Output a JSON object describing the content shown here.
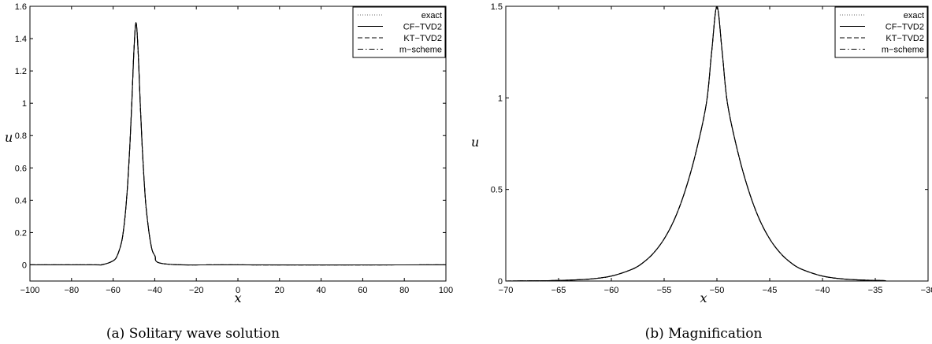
{
  "chart_data": [
    {
      "type": "line",
      "caption": "(a)  Solitary wave solution",
      "xlabel": "x",
      "ylabel": "u",
      "xlim": [
        -100,
        100
      ],
      "ylim": [
        -0.1,
        1.6
      ],
      "xticks": [
        -100,
        -80,
        -60,
        -40,
        -20,
        0,
        20,
        40,
        60,
        80,
        100
      ],
      "yticks": [
        0,
        0.2,
        0.4,
        0.6,
        0.8,
        1,
        1.2,
        1.4,
        1.6
      ],
      "xtick_labels": [
        "−100",
        "−80",
        "−60",
        "−40",
        "−20",
        "0",
        "20",
        "40",
        "60",
        "80",
        "100"
      ],
      "ytick_labels": [
        "0",
        "0.2",
        "0.4",
        "0.6",
        "0.8",
        "1",
        "1.2",
        "1.4",
        "1.6"
      ],
      "grid": false,
      "legend_position": "top-right",
      "series": [
        {
          "name": "exact",
          "style": "dotted",
          "x": [
            -100,
            -70,
            -65,
            -60,
            -58,
            -56,
            -55,
            -54,
            -53,
            -52,
            -51,
            -50,
            -49,
            -48,
            -47,
            -46,
            -45,
            -44,
            -42,
            -40,
            -35,
            0,
            100
          ],
          "y": [
            0,
            0.0002,
            0.002,
            0.025,
            0.058,
            0.138,
            0.217,
            0.336,
            0.502,
            0.727,
            1.009,
            1.327,
            1.5,
            1.327,
            1.009,
            0.727,
            0.502,
            0.336,
            0.138,
            0.058,
            0.006,
            0,
            0
          ]
        },
        {
          "name": "CF−TVD2",
          "style": "solid",
          "x": [
            -100,
            -70,
            -65,
            -60,
            -58,
            -56,
            -55,
            -54,
            -53,
            -52,
            -51,
            -50,
            -49,
            -48,
            -47,
            -46,
            -45,
            -44,
            -42,
            -40,
            -35,
            0,
            100
          ],
          "y": [
            0,
            0.0002,
            0.002,
            0.025,
            0.058,
            0.138,
            0.217,
            0.336,
            0.502,
            0.727,
            1.009,
            1.327,
            1.5,
            1.327,
            1.009,
            0.727,
            0.502,
            0.336,
            0.138,
            0.058,
            0.006,
            0,
            0
          ]
        },
        {
          "name": "KT−TVD2",
          "style": "dashed",
          "x": [
            -100,
            -70,
            -65,
            -60,
            -58,
            -56,
            -55,
            -54,
            -53,
            -52,
            -51,
            -50,
            -49,
            -48,
            -47,
            -46,
            -45,
            -44,
            -42,
            -40,
            -35,
            0,
            100
          ],
          "y": [
            0,
            0.0002,
            0.002,
            0.025,
            0.058,
            0.138,
            0.217,
            0.336,
            0.502,
            0.727,
            1.009,
            1.327,
            1.5,
            1.327,
            1.009,
            0.727,
            0.502,
            0.336,
            0.138,
            0.058,
            0.006,
            0,
            0
          ]
        },
        {
          "name": "m−scheme",
          "style": "dashdot",
          "x": [
            -100,
            -70,
            -65,
            -60,
            -58,
            -56,
            -55,
            -54,
            -53,
            -52,
            -51,
            -50,
            -49,
            -48,
            -47,
            -46,
            -45,
            -44,
            -42,
            -40,
            -35,
            0,
            100
          ],
          "y": [
            0,
            0.0002,
            0.002,
            0.025,
            0.058,
            0.138,
            0.217,
            0.336,
            0.502,
            0.727,
            1.009,
            1.327,
            1.5,
            1.327,
            1.009,
            0.727,
            0.502,
            0.336,
            0.138,
            0.058,
            0.006,
            0,
            0
          ]
        }
      ]
    },
    {
      "type": "line",
      "caption": "(b)  Magnification",
      "xlabel": "x",
      "ylabel": "u",
      "xlim": [
        -70,
        -30
      ],
      "ylim": [
        0,
        1.5
      ],
      "xticks": [
        -70,
        -65,
        -60,
        -55,
        -50,
        -45,
        -40,
        -35,
        -30
      ],
      "yticks": [
        0,
        0.5,
        1,
        1.5
      ],
      "xtick_labels": [
        "−70",
        "−65",
        "−60",
        "−55",
        "−50",
        "−45",
        "−40",
        "−35",
        "−30"
      ],
      "ytick_labels": [
        "0",
        "0.5",
        "1",
        "1.5"
      ],
      "grid": false,
      "legend_position": "top-right",
      "series": [
        {
          "name": "exact",
          "style": "dotted",
          "x": [
            -70,
            -68,
            -66,
            -64,
            -62,
            -60,
            -58,
            -57,
            -56,
            -55,
            -54,
            -53,
            -52,
            -51,
            -50.5,
            -50,
            -49.5,
            -49,
            -48,
            -47,
            -46,
            -45,
            -44,
            -43,
            -42,
            -40,
            -38,
            -36,
            -34
          ],
          "y": [
            0,
            0.001,
            0.002,
            0.005,
            0.011,
            0.027,
            0.065,
            0.1,
            0.153,
            0.23,
            0.34,
            0.495,
            0.7,
            0.97,
            1.25,
            1.5,
            1.25,
            0.97,
            0.7,
            0.495,
            0.34,
            0.23,
            0.153,
            0.1,
            0.065,
            0.027,
            0.011,
            0.005,
            0.002
          ]
        },
        {
          "name": "CF−TVD2",
          "style": "solid",
          "x": [
            -70,
            -68,
            -66,
            -64,
            -62,
            -60,
            -58,
            -57,
            -56,
            -55,
            -54,
            -53,
            -52,
            -51,
            -50.5,
            -50,
            -49.5,
            -49,
            -48,
            -47,
            -46,
            -45,
            -44,
            -43,
            -42,
            -40,
            -38,
            -36,
            -34
          ],
          "y": [
            0,
            0.001,
            0.002,
            0.005,
            0.011,
            0.027,
            0.065,
            0.1,
            0.153,
            0.23,
            0.34,
            0.495,
            0.7,
            0.97,
            1.25,
            1.5,
            1.25,
            0.97,
            0.7,
            0.495,
            0.34,
            0.23,
            0.153,
            0.1,
            0.065,
            0.027,
            0.011,
            0.005,
            0.002
          ]
        },
        {
          "name": "KT−TVD2",
          "style": "dashed",
          "x": [
            -70,
            -68,
            -66,
            -64,
            -62,
            -60,
            -58,
            -57,
            -56,
            -55,
            -54,
            -53,
            -52,
            -51,
            -50.5,
            -50,
            -49.5,
            -49,
            -48,
            -47,
            -46,
            -45,
            -44,
            -43,
            -42,
            -40,
            -38,
            -36,
            -34
          ],
          "y": [
            0,
            0.001,
            0.002,
            0.005,
            0.011,
            0.027,
            0.065,
            0.1,
            0.153,
            0.23,
            0.34,
            0.495,
            0.7,
            0.97,
            1.25,
            1.5,
            1.25,
            0.97,
            0.7,
            0.495,
            0.34,
            0.23,
            0.153,
            0.1,
            0.065,
            0.027,
            0.011,
            0.005,
            0.002
          ]
        },
        {
          "name": "m−scheme",
          "style": "dashdot",
          "x": [
            -70,
            -68,
            -66,
            -64,
            -62,
            -60,
            -58,
            -57,
            -56,
            -55,
            -54,
            -53,
            -52,
            -51,
            -50.5,
            -50,
            -49.5,
            -49,
            -48,
            -47,
            -46,
            -45,
            -44,
            -43,
            -42,
            -40,
            -38,
            -36,
            -34
          ],
          "y": [
            0,
            0.001,
            0.002,
            0.005,
            0.011,
            0.027,
            0.065,
            0.1,
            0.153,
            0.23,
            0.34,
            0.495,
            0.7,
            0.97,
            1.25,
            1.5,
            1.25,
            0.97,
            0.7,
            0.495,
            0.34,
            0.23,
            0.153,
            0.1,
            0.065,
            0.027,
            0.011,
            0.005,
            0.002
          ]
        }
      ]
    }
  ]
}
